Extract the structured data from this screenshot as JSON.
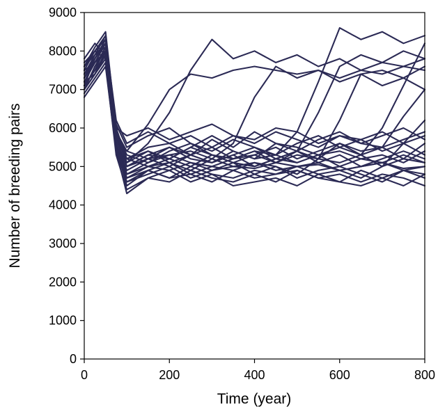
{
  "chart_data": {
    "type": "line",
    "title": "",
    "xlabel": "Time (year)",
    "ylabel": "Number of breeding pairs",
    "xlim": [
      0,
      800
    ],
    "ylim": [
      0,
      9000
    ],
    "x_ticks": [
      "0",
      "200",
      "400",
      "600",
      "800"
    ],
    "y_ticks": [
      "0",
      "1000",
      "2000",
      "3000",
      "4000",
      "5000",
      "6000",
      "7000",
      "8000",
      "9000"
    ],
    "grid": false,
    "legend": "none",
    "line_color": "#2b2a55",
    "series_note": "about 25 overlapping simulated trajectories, same colour, unlabeled; approximate values estimated from the axes",
    "series": [
      {
        "x": [
          0,
          25,
          50,
          75,
          100,
          150,
          200,
          250,
          300,
          350,
          400,
          450,
          500,
          550,
          600,
          650,
          700,
          750,
          800
        ],
        "values": [
          7200,
          7700,
          8200,
          5600,
          4700,
          5000,
          5100,
          4900,
          5200,
          5000,
          4950,
          5100,
          5000,
          5050,
          4900,
          5000,
          5100,
          4950,
          5000
        ]
      },
      {
        "x": [
          0,
          25,
          50,
          75,
          100,
          150,
          200,
          250,
          300,
          350,
          400,
          450,
          500,
          550,
          600,
          650,
          700,
          750,
          800
        ],
        "values": [
          7000,
          7400,
          8000,
          5800,
          5200,
          5500,
          5600,
          5300,
          5700,
          5400,
          5200,
          5600,
          5500,
          5300,
          5400,
          5200,
          5300,
          5100,
          5400
        ]
      },
      {
        "x": [
          0,
          25,
          50,
          75,
          100,
          150,
          200,
          250,
          300,
          350,
          400,
          450,
          500,
          550,
          600,
          650,
          700,
          750,
          800
        ],
        "values": [
          7600,
          8000,
          7800,
          5500,
          4500,
          4900,
          4700,
          4800,
          4600,
          4900,
          4700,
          4800,
          4900,
          4700,
          4800,
          4600,
          4800,
          4700,
          4500
        ]
      },
      {
        "x": [
          0,
          25,
          50,
          75,
          100,
          150,
          200,
          250,
          300,
          350,
          400,
          450,
          500,
          550,
          600,
          650,
          700,
          750,
          800
        ],
        "values": [
          7300,
          7900,
          8400,
          6000,
          5800,
          6000,
          5700,
          5900,
          6100,
          5800,
          5700,
          6000,
          5900,
          5600,
          5800,
          5700,
          5900,
          5600,
          5800
        ]
      },
      {
        "x": [
          0,
          25,
          50,
          75,
          100,
          150,
          200,
          250,
          300,
          350,
          400,
          450,
          500,
          550,
          600,
          650,
          700,
          750,
          800
        ],
        "values": [
          6800,
          7200,
          7600,
          5400,
          4300,
          4700,
          4900,
          4600,
          4800,
          4500,
          4600,
          4700,
          4500,
          4800,
          4600,
          4500,
          4700,
          4900,
          4700
        ]
      },
      {
        "x": [
          0,
          25,
          50,
          75,
          100,
          150,
          200,
          250,
          300,
          350,
          400,
          450,
          500,
          550,
          600,
          650,
          700,
          750,
          800
        ],
        "values": [
          7100,
          7500,
          8100,
          5700,
          5000,
          5200,
          5300,
          5100,
          5000,
          5200,
          5400,
          5100,
          5300,
          5200,
          5100,
          5300,
          5000,
          5200,
          5100
        ]
      },
      {
        "x": [
          0,
          25,
          50,
          75,
          100,
          150,
          200,
          250,
          300,
          350,
          400,
          450,
          500,
          550,
          600,
          650,
          700,
          750,
          800
        ],
        "values": [
          7400,
          7800,
          8300,
          6100,
          5500,
          5800,
          6000,
          5600,
          5400,
          5700,
          5500,
          5300,
          5600,
          5800,
          5500,
          5700,
          5400,
          5600,
          5300
        ]
      },
      {
        "x": [
          0,
          25,
          50,
          75,
          100,
          150,
          200,
          250,
          300,
          350,
          400,
          450,
          500,
          550,
          600,
          650,
          700,
          750,
          800
        ],
        "values": [
          7800,
          8200,
          7900,
          5600,
          4800,
          5000,
          4900,
          5100,
          4900,
          5000,
          5100,
          4900,
          5000,
          5100,
          4900,
          5000,
          5100,
          4900,
          5000
        ]
      },
      {
        "x": [
          0,
          25,
          50,
          75,
          100,
          150,
          200,
          250,
          300,
          350,
          400,
          450,
          500,
          550,
          600,
          650,
          700,
          750,
          800
        ],
        "values": [
          7000,
          7600,
          8000,
          5900,
          5300,
          5100,
          5400,
          5600,
          5300,
          5100,
          5300,
          5500,
          5200,
          5400,
          5600,
          5300,
          5500,
          5200,
          5600
        ]
      },
      {
        "x": [
          0,
          25,
          50,
          75,
          100,
          150,
          200,
          250,
          300,
          350,
          400,
          450,
          500,
          550,
          600,
          650,
          700,
          750,
          800
        ],
        "values": [
          7500,
          7700,
          8200,
          5500,
          4600,
          4800,
          5000,
          4700,
          4900,
          5100,
          4800,
          5000,
          4700,
          4900,
          5000,
          4800,
          4600,
          4900,
          4800
        ]
      },
      {
        "x": [
          0,
          25,
          50,
          75,
          100,
          150,
          200,
          250,
          300,
          350,
          400,
          450,
          500,
          550,
          600,
          650,
          700,
          750,
          800
        ],
        "values": [
          7200,
          7400,
          7900,
          5800,
          5100,
          5400,
          5200,
          5500,
          5800,
          5500,
          5900,
          5600,
          5400,
          5700,
          5900,
          5600,
          5800,
          6000,
          5700
        ]
      },
      {
        "x": [
          0,
          25,
          50,
          75,
          100,
          150,
          200,
          250,
          300,
          350,
          400,
          450,
          500,
          550,
          600,
          650,
          700,
          750,
          800
        ],
        "values": [
          7600,
          8100,
          8500,
          6000,
          5000,
          5300,
          5500,
          5200,
          5100,
          5300,
          5000,
          5200,
          5400,
          5100,
          5300,
          5000,
          5200,
          5400,
          5200
        ]
      },
      {
        "x": [
          0,
          25,
          50,
          75,
          100,
          150,
          200,
          250,
          300,
          350,
          400,
          450,
          500,
          550,
          600,
          650,
          700,
          750,
          800
        ],
        "values": [
          6900,
          7300,
          7700,
          5300,
          4400,
          4700,
          4600,
          4900,
          4700,
          4600,
          4800,
          4600,
          4900,
          4700,
          4600,
          4900,
          4700,
          4500,
          4800
        ]
      },
      {
        "x": [
          0,
          25,
          50,
          75,
          100,
          150,
          200,
          250,
          300,
          350,
          400,
          450,
          500,
          550,
          600,
          650,
          700,
          750,
          800
        ],
        "values": [
          7300,
          7700,
          8000,
          5700,
          5200,
          5000,
          5200,
          5000,
          5300,
          5100,
          5000,
          5200,
          5100,
          5300,
          5000,
          5200,
          5100,
          5300,
          5100
        ]
      },
      {
        "x": [
          0,
          25,
          50,
          75,
          100,
          150,
          200,
          250,
          300,
          350,
          400,
          450,
          500,
          550,
          600,
          650,
          700,
          750,
          800
        ],
        "values": [
          7100,
          7800,
          8300,
          6200,
          5600,
          5900,
          5600,
          5800,
          5500,
          5800,
          5600,
          5900,
          5700,
          5500,
          5800,
          5600,
          5500,
          5700,
          5900
        ]
      },
      {
        "x": [
          0,
          25,
          50,
          75,
          100,
          150,
          200,
          250,
          300,
          350,
          400,
          450,
          500,
          550,
          600,
          650,
          700,
          750,
          800
        ],
        "values": [
          7400,
          7900,
          8200,
          5700,
          5400,
          6100,
          7000,
          7400,
          7300,
          7500,
          7600,
          7500,
          7400,
          7500,
          7300,
          7500,
          7400,
          7600,
          7500
        ]
      },
      {
        "x": [
          0,
          25,
          50,
          75,
          100,
          150,
          200,
          250,
          300,
          350,
          400,
          450,
          500,
          550,
          600,
          650,
          700,
          750,
          800
        ],
        "values": [
          7000,
          7600,
          8100,
          5900,
          5100,
          5600,
          6400,
          7500,
          8300,
          7800,
          8000,
          7700,
          7900,
          7600,
          7800,
          7500,
          7700,
          7600,
          7800
        ]
      },
      {
        "x": [
          0,
          25,
          50,
          75,
          100,
          150,
          200,
          250,
          300,
          350,
          400,
          450,
          500,
          550,
          600,
          650,
          700,
          750,
          800
        ],
        "values": [
          7700,
          8000,
          8400,
          5800,
          4800,
          5100,
          5300,
          5400,
          5200,
          5600,
          6800,
          7600,
          7300,
          7500,
          7200,
          7400,
          7100,
          7300,
          7000
        ]
      },
      {
        "x": [
          0,
          25,
          50,
          75,
          100,
          150,
          200,
          250,
          300,
          350,
          400,
          450,
          500,
          550,
          600,
          650,
          700,
          750,
          800
        ],
        "values": [
          7200,
          7700,
          8000,
          5600,
          4900,
          5200,
          5000,
          5300,
          5100,
          5400,
          5200,
          5300,
          5900,
          7200,
          8600,
          8300,
          8500,
          8200,
          8400
        ]
      },
      {
        "x": [
          0,
          25,
          50,
          75,
          100,
          150,
          200,
          250,
          300,
          350,
          400,
          450,
          500,
          550,
          600,
          650,
          700,
          750,
          800
        ],
        "values": [
          7500,
          8000,
          8300,
          6000,
          5200,
          5400,
          5100,
          5300,
          5500,
          5200,
          5300,
          5100,
          5400,
          6400,
          7600,
          7900,
          7700,
          8000,
          7800
        ]
      },
      {
        "x": [
          0,
          25,
          50,
          75,
          100,
          150,
          200,
          250,
          300,
          350,
          400,
          450,
          500,
          550,
          600,
          650,
          700,
          750,
          800
        ],
        "values": [
          7100,
          7500,
          7900,
          5500,
          4700,
          4900,
          5100,
          4800,
          5000,
          4900,
          5100,
          5000,
          4800,
          5200,
          6200,
          7400,
          7500,
          7300,
          7600
        ]
      },
      {
        "x": [
          0,
          25,
          50,
          75,
          100,
          150,
          200,
          250,
          300,
          350,
          400,
          450,
          500,
          550,
          600,
          650,
          700,
          750,
          800
        ],
        "values": [
          7300,
          7800,
          8200,
          5700,
          5000,
          5300,
          5200,
          5500,
          5300,
          5200,
          5400,
          5300,
          5100,
          5300,
          5500,
          5300,
          6000,
          7100,
          8200
        ]
      },
      {
        "x": [
          0,
          25,
          50,
          75,
          100,
          150,
          200,
          250,
          300,
          350,
          400,
          450,
          500,
          550,
          600,
          650,
          700,
          750,
          800
        ],
        "values": [
          7600,
          7900,
          8100,
          5900,
          5400,
          5200,
          5500,
          5300,
          5100,
          5300,
          5500,
          5200,
          5400,
          5200,
          5600,
          5400,
          5500,
          6300,
          7000
        ]
      },
      {
        "x": [
          0,
          25,
          50,
          75,
          100,
          150,
          200,
          250,
          300,
          350,
          400,
          450,
          500,
          550,
          600,
          650,
          700,
          750,
          800
        ],
        "values": [
          7000,
          7400,
          7800,
          5400,
          4600,
          4900,
          4700,
          5000,
          4800,
          4700,
          4900,
          4800,
          5000,
          4800,
          4900,
          4700,
          5000,
          5600,
          6200
        ]
      }
    ]
  }
}
